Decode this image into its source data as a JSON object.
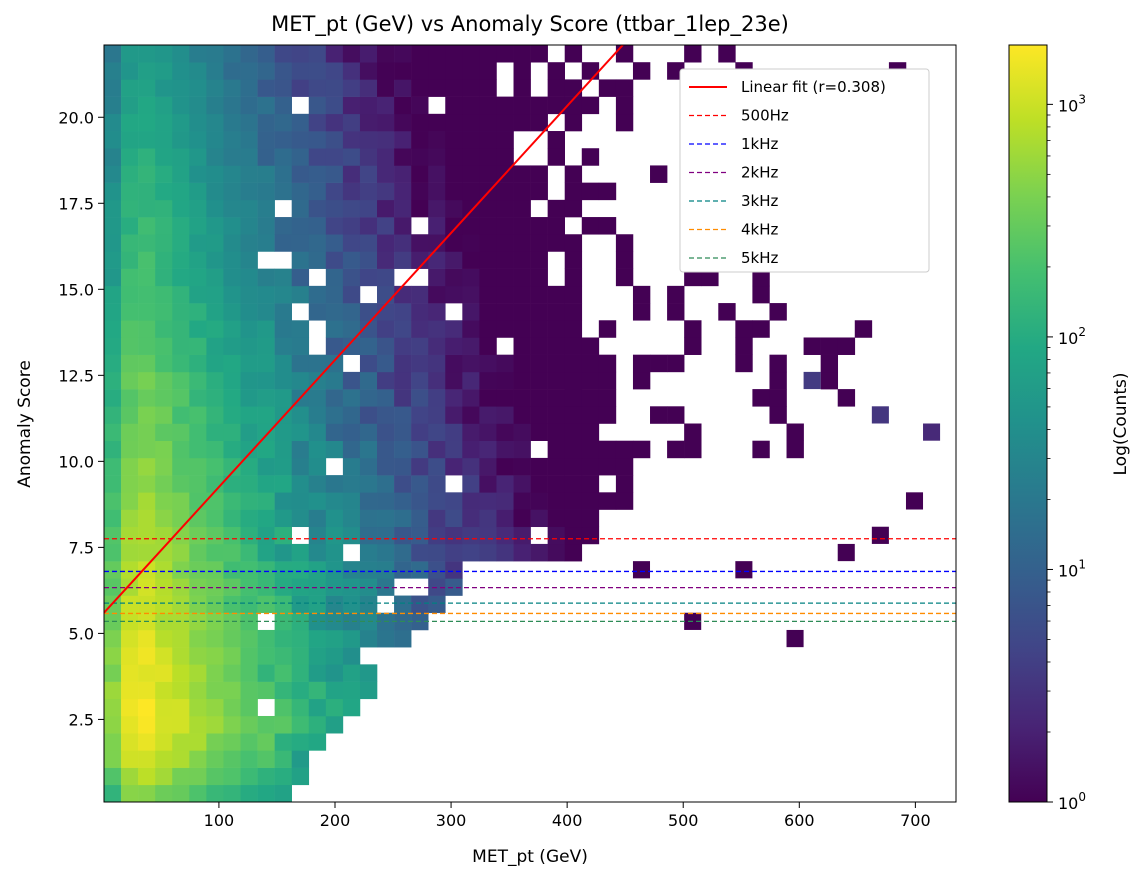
{
  "chart_data": {
    "type": "heatmap",
    "title": "MET_pt (GeV) vs Anomaly Score (ttbar_1lep_23e)",
    "xlabel": "MET_pt (GeV)",
    "ylabel": "Anomaly Score",
    "xlim": [
      1,
      735
    ],
    "ylim": [
      0.1,
      22.1
    ],
    "xticks": [
      100,
      200,
      300,
      400,
      500,
      600,
      700
    ],
    "yticks": [
      2.5,
      5.0,
      7.5,
      10.0,
      12.5,
      15.0,
      17.5,
      20.0
    ],
    "ytick_labels": [
      "2.5",
      "5.0",
      "7.5",
      "10.0",
      "12.5",
      "15.0",
      "17.5",
      "20.0"
    ],
    "grid": false,
    "legend_position": "upper right",
    "colorbar": {
      "label": "Log(Counts)",
      "scale": "log",
      "range": [
        1,
        1800
      ],
      "colormap": "viridis",
      "ticks": [
        {
          "value": 1,
          "base": "10",
          "exp": "0"
        },
        {
          "value": 10,
          "base": "10",
          "exp": "1"
        },
        {
          "value": 100,
          "base": "10",
          "exp": "2"
        },
        {
          "value": 1000,
          "base": "10",
          "exp": "3"
        }
      ]
    },
    "fit_line": {
      "label": "Linear fit (r=0.308)",
      "color": "#ff0000",
      "x": [
        1,
        448
      ],
      "y": [
        5.6,
        22.1
      ]
    },
    "thresholds": [
      {
        "label": "500Hz",
        "y": 7.75,
        "color": "#ff0000"
      },
      {
        "label": "1kHz",
        "y": 6.8,
        "color": "#0000ff"
      },
      {
        "label": "2kHz",
        "y": 6.33,
        "color": "#800080"
      },
      {
        "label": "3kHz",
        "y": 5.88,
        "color": "#008080"
      },
      {
        "label": "4kHz",
        "y": 5.58,
        "color": "#ff8c00"
      },
      {
        "label": "5kHz",
        "y": 5.35,
        "color": "#2e8b57"
      }
    ],
    "bins": {
      "x_edges_start": 1,
      "x_bin_width": 14.7,
      "y_edges_start": 0.1,
      "y_bin_width": 0.5,
      "core_profile": "counts fall off with x roughly exponentially (scale ~55 GeV) and with y (scale ~5.8 score units), peak ~1800 counts near x=35, y=2.8",
      "sparse_counts": [
        [
          1,
          1,
          0,
          0
        ],
        [
          8,
          7,
          5,
          2
        ],
        [
          20.6,
          12.4,
          3.6,
          3.2
        ],
        [
          22.2,
          11.5,
          3.2,
          3.0
        ],
        [
          23.8,
          10.6,
          2.4,
          3.5
        ],
        [
          24.6,
          11.4,
          1,
          1
        ],
        [
          23.4,
          8.9,
          1,
          1
        ],
        [
          22.3,
          7.9,
          1,
          1
        ],
        [
          21.3,
          7.3,
          1,
          1
        ],
        [
          19.8,
          4.6,
          1,
          1
        ],
        [
          18.2,
          6.9,
          1,
          1
        ],
        [
          16.8,
          5.4,
          1,
          1
        ],
        [
          15.3,
          6.6,
          1,
          1
        ],
        [
          13.6,
          11.7,
          1,
          1
        ],
        [
          12.1,
          8.2,
          1,
          1
        ]
      ]
    }
  }
}
